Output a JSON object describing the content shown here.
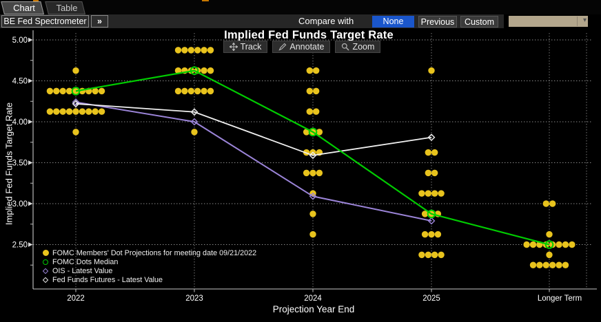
{
  "tabs": {
    "chart": "Chart",
    "table": "Table"
  },
  "toolbar": {
    "spectrometer_label": "BE Fed Spectrometer",
    "expand_icon": "»",
    "compare_with_label": "Compare with",
    "none_label": "None",
    "previous_label": "Previous",
    "custom_label": "Custom",
    "selected_compare": "None",
    "dropdown_value": "",
    "dropdown_arrow": "▾",
    "accent_blue": "#1a56cb",
    "dropdown_beige": "#b3a68c"
  },
  "chart_toolbar": {
    "track_label": "Track",
    "annotate_label": "Annotate",
    "zoom_label": "Zoom"
  },
  "legend": {
    "items": [
      {
        "label": "FOMC Members' Dot Projections for meeting date 09/21/2022",
        "marker": "filled-circle",
        "color": "#e8c31d"
      },
      {
        "label": "FOMC Dots Median",
        "marker": "open-circle",
        "color": "#00cc00"
      },
      {
        "label": "OIS - Latest Value",
        "marker": "open-diamond",
        "color": "#9b84d8"
      },
      {
        "label": "Fed Funds Futures - Latest Value",
        "marker": "open-diamond",
        "color": "#e8e8e8"
      }
    ]
  },
  "chart_data": {
    "type": "scatter",
    "title": "Implied Fed Funds Target Rate",
    "xlabel": "Projection Year End",
    "ylabel": "Implied Fed Funds Target Rate",
    "categories": [
      "2022",
      "2023",
      "2024",
      "2025",
      "Longer Term"
    ],
    "ytick_labels": [
      "5.00",
      "4.50",
      "4.00",
      "3.50",
      "3.00",
      "2.50"
    ],
    "ytick_values": [
      5.0,
      4.5,
      4.0,
      3.5,
      3.0,
      2.5
    ],
    "ylim": [
      2.2,
      5.05
    ],
    "grid": true,
    "legend_position": "bottom-left",
    "dot_color": "#e8c31d",
    "dot_columns": [
      {
        "category": "2022",
        "median": 4.375,
        "levels": [
          {
            "value": 4.625,
            "count": 1
          },
          {
            "value": 4.375,
            "count": 9
          },
          {
            "value": 4.125,
            "count": 9
          },
          {
            "value": 3.875,
            "count": 1
          }
        ]
      },
      {
        "category": "2023",
        "median": 4.625,
        "levels": [
          {
            "value": 4.875,
            "count": 6
          },
          {
            "value": 4.625,
            "count": 6
          },
          {
            "value": 4.375,
            "count": 6
          },
          {
            "value": 3.875,
            "count": 1
          }
        ]
      },
      {
        "category": "2024",
        "median": 3.875,
        "levels": [
          {
            "value": 4.625,
            "count": 2
          },
          {
            "value": 4.375,
            "count": 2
          },
          {
            "value": 4.125,
            "count": 2
          },
          {
            "value": 3.875,
            "count": 3
          },
          {
            "value": 3.625,
            "count": 3
          },
          {
            "value": 3.375,
            "count": 3
          },
          {
            "value": 3.125,
            "count": 1
          },
          {
            "value": 2.875,
            "count": 1
          },
          {
            "value": 2.625,
            "count": 1
          }
        ]
      },
      {
        "category": "2025",
        "median": 2.875,
        "levels": [
          {
            "value": 4.625,
            "count": 1
          },
          {
            "value": 3.625,
            "count": 2
          },
          {
            "value": 3.375,
            "count": 2
          },
          {
            "value": 3.125,
            "count": 4
          },
          {
            "value": 2.875,
            "count": 3
          },
          {
            "value": 2.625,
            "count": 3
          },
          {
            "value": 2.375,
            "count": 4
          }
        ]
      },
      {
        "category": "Longer Term",
        "median": 2.5,
        "levels": [
          {
            "value": 3.0,
            "count": 2
          },
          {
            "value": 2.625,
            "count": 1
          },
          {
            "value": 2.5,
            "count": 8
          },
          {
            "value": 2.375,
            "count": 1
          },
          {
            "value": 2.25,
            "count": 6
          }
        ]
      }
    ],
    "series": [
      {
        "name": "FOMC Dots Median",
        "color": "#00cc00",
        "marker": "open-circle",
        "values": [
          4.375,
          4.625,
          3.875,
          2.875,
          2.5
        ]
      },
      {
        "name": "OIS - Latest Value",
        "color": "#9b84d8",
        "marker": "open-diamond",
        "values": [
          4.24,
          4.0,
          3.09,
          2.79,
          null
        ]
      },
      {
        "name": "Fed Funds Futures - Latest Value",
        "color": "#f0f0f0",
        "marker": "open-diamond",
        "values": [
          4.22,
          4.12,
          3.59,
          3.81,
          null
        ]
      }
    ]
  }
}
